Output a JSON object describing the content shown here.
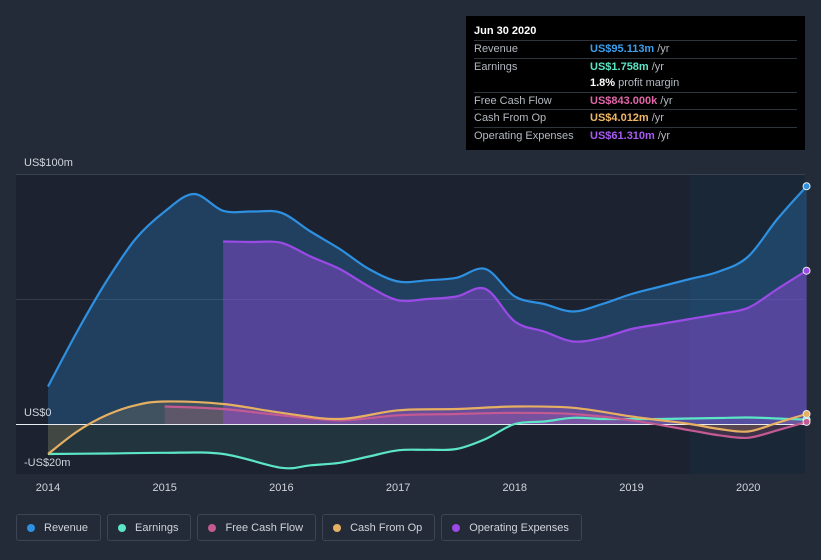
{
  "chart_data": {
    "type": "area",
    "ylabel_top": "US$100m",
    "ylabel_zero": "US$0",
    "ylabel_bottom": "-US$20m",
    "ylim": [
      -20,
      100
    ],
    "xlim": [
      2014.0,
      2020.5
    ],
    "x_ticks": [
      "2014",
      "2015",
      "2016",
      "2017",
      "2018",
      "2019",
      "2020"
    ],
    "forecast_start": 2019.5,
    "series": [
      {
        "name": "Revenue",
        "color": "#2e90e0",
        "points": [
          [
            2014.0,
            15.0
          ],
          [
            2014.25,
            37.0
          ],
          [
            2014.5,
            57.0
          ],
          [
            2014.75,
            74.0
          ],
          [
            2015.0,
            85.0
          ],
          [
            2015.25,
            92.0
          ],
          [
            2015.5,
            85.3
          ],
          [
            2015.75,
            85.0
          ],
          [
            2016.0,
            84.5
          ],
          [
            2016.25,
            77.0
          ],
          [
            2016.5,
            70.0
          ],
          [
            2016.75,
            62.0
          ],
          [
            2017.0,
            57.0
          ],
          [
            2017.25,
            57.5
          ],
          [
            2017.5,
            58.5
          ],
          [
            2017.75,
            62.0
          ],
          [
            2018.0,
            51.0
          ],
          [
            2018.25,
            48.0
          ],
          [
            2018.5,
            45.0
          ],
          [
            2018.75,
            48.0
          ],
          [
            2019.0,
            52.0
          ],
          [
            2019.25,
            55.0
          ],
          [
            2019.5,
            58.0
          ],
          [
            2019.75,
            61.0
          ],
          [
            2020.0,
            67.0
          ],
          [
            2020.25,
            82.0
          ],
          [
            2020.5,
            95.1
          ]
        ]
      },
      {
        "name": "Earnings",
        "color": "#5ce6c6",
        "points": [
          [
            2014.0,
            -12.0
          ],
          [
            2014.5,
            -11.8
          ],
          [
            2015.0,
            -11.5
          ],
          [
            2015.5,
            -12.0
          ],
          [
            2016.0,
            -17.5
          ],
          [
            2016.25,
            -16.5
          ],
          [
            2016.5,
            -15.5
          ],
          [
            2016.75,
            -13.0
          ],
          [
            2017.0,
            -10.5
          ],
          [
            2017.25,
            -10.3
          ],
          [
            2017.5,
            -10.0
          ],
          [
            2017.75,
            -6.0
          ],
          [
            2018.0,
            0.0
          ],
          [
            2018.25,
            1.0
          ],
          [
            2018.5,
            2.5
          ],
          [
            2018.75,
            2.0
          ],
          [
            2019.0,
            2.0
          ],
          [
            2019.25,
            2.0
          ],
          [
            2019.5,
            2.2
          ],
          [
            2019.75,
            2.4
          ],
          [
            2020.0,
            2.6
          ],
          [
            2020.25,
            2.2
          ],
          [
            2020.5,
            1.758
          ]
        ]
      },
      {
        "name": "Free Cash Flow",
        "color": "#c45a92",
        "points": [
          [
            2015.0,
            7.0
          ],
          [
            2015.5,
            6.0
          ],
          [
            2016.0,
            3.5
          ],
          [
            2016.5,
            1.5
          ],
          [
            2017.0,
            3.5
          ],
          [
            2017.5,
            4.0
          ],
          [
            2018.0,
            4.5
          ],
          [
            2018.5,
            4.0
          ],
          [
            2019.0,
            1.5
          ],
          [
            2019.5,
            -2.5
          ],
          [
            2019.75,
            -4.5
          ],
          [
            2020.0,
            -5.5
          ],
          [
            2020.25,
            -2.5
          ],
          [
            2020.5,
            0.843
          ]
        ]
      },
      {
        "name": "Cash From Op",
        "color": "#e6b062",
        "points": [
          [
            2014.0,
            -12.0
          ],
          [
            2014.25,
            -3.0
          ],
          [
            2014.5,
            3.5
          ],
          [
            2014.75,
            7.5
          ],
          [
            2015.0,
            9.0
          ],
          [
            2015.5,
            8.0
          ],
          [
            2016.0,
            4.5
          ],
          [
            2016.5,
            2.0
          ],
          [
            2017.0,
            5.5
          ],
          [
            2017.5,
            6.0
          ],
          [
            2018.0,
            7.0
          ],
          [
            2018.5,
            6.5
          ],
          [
            2019.0,
            3.0
          ],
          [
            2019.5,
            0.0
          ],
          [
            2019.75,
            -2.0
          ],
          [
            2020.0,
            -3.0
          ],
          [
            2020.25,
            0.5
          ],
          [
            2020.5,
            4.012
          ]
        ]
      },
      {
        "name": "Operating Expenses",
        "color": "#9b4ae6",
        "points": [
          [
            2015.5,
            73.0
          ],
          [
            2015.75,
            72.8
          ],
          [
            2016.0,
            72.5
          ],
          [
            2016.25,
            67.0
          ],
          [
            2016.5,
            62.0
          ],
          [
            2016.75,
            55.0
          ],
          [
            2017.0,
            49.5
          ],
          [
            2017.25,
            50.0
          ],
          [
            2017.5,
            51.0
          ],
          [
            2017.75,
            54.0
          ],
          [
            2018.0,
            41.0
          ],
          [
            2018.25,
            37.0
          ],
          [
            2018.5,
            33.0
          ],
          [
            2018.75,
            34.5
          ],
          [
            2019.0,
            38.0
          ],
          [
            2019.25,
            40.0
          ],
          [
            2019.5,
            42.0
          ],
          [
            2019.75,
            44.0
          ],
          [
            2020.0,
            46.5
          ],
          [
            2020.25,
            54.0
          ],
          [
            2020.5,
            61.31
          ]
        ]
      }
    ]
  },
  "tooltip": {
    "date": "Jun 30 2020",
    "rows": [
      {
        "label": "Revenue",
        "value": "US$95.113m",
        "unit": "/yr",
        "color": "#3b9fee"
      },
      {
        "label": "Earnings",
        "value": "US$1.758m",
        "unit": "/yr",
        "color": "#5ce6c6"
      },
      {
        "label": "",
        "value": "1.8%",
        "unit": "profit margin",
        "color": "#ffffff"
      },
      {
        "label": "Free Cash Flow",
        "value": "US$843.000k",
        "unit": "/yr",
        "color": "#e066a8"
      },
      {
        "label": "Cash From Op",
        "value": "US$4.012m",
        "unit": "/yr",
        "color": "#f0b866"
      },
      {
        "label": "Operating Expenses",
        "value": "US$61.310m",
        "unit": "/yr",
        "color": "#a75cf2"
      }
    ]
  },
  "legend": [
    {
      "label": "Revenue",
      "color": "#2e90e0"
    },
    {
      "label": "Earnings",
      "color": "#5ce6c6"
    },
    {
      "label": "Free Cash Flow",
      "color": "#c45a92"
    },
    {
      "label": "Cash From Op",
      "color": "#e6b062"
    },
    {
      "label": "Operating Expenses",
      "color": "#9b4ae6"
    }
  ]
}
